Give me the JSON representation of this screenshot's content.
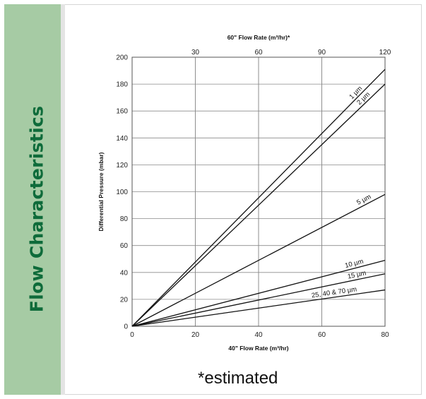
{
  "sidebar": {
    "title": "Flow Characteristics"
  },
  "footnote": "*estimated",
  "chart_data": {
    "type": "line",
    "title": "",
    "xlabel": "40\" Flow Rate (m³/hr)",
    "ylabel": "Differential Pressure (mbar)",
    "x2label": "60\" Flow Rate (m³/hr)*",
    "xlim": [
      0,
      80
    ],
    "ylim": [
      0,
      200
    ],
    "x2lim": [
      0,
      120
    ],
    "xticks": [
      0,
      20,
      40,
      60,
      80
    ],
    "yticks": [
      0,
      20,
      40,
      60,
      80,
      100,
      120,
      140,
      160,
      180,
      200
    ],
    "x2ticks": [
      30,
      60,
      90,
      120
    ],
    "grid": true,
    "legend": "none",
    "series": [
      {
        "name": "1 µm",
        "x": [
          0,
          80
        ],
        "y": [
          0,
          191
        ]
      },
      {
        "name": "2 µm",
        "x": [
          0,
          80
        ],
        "y": [
          0,
          180
        ]
      },
      {
        "name": "5 µm",
        "x": [
          0,
          80
        ],
        "y": [
          0,
          98
        ]
      },
      {
        "name": "10 µm",
        "x": [
          0,
          80
        ],
        "y": [
          0,
          49
        ]
      },
      {
        "name": "15 µm",
        "x": [
          0,
          80
        ],
        "y": [
          0,
          39
        ]
      },
      {
        "name": "25, 40 & 70 µm",
        "x": [
          0,
          80
        ],
        "y": [
          0,
          27
        ]
      }
    ]
  }
}
